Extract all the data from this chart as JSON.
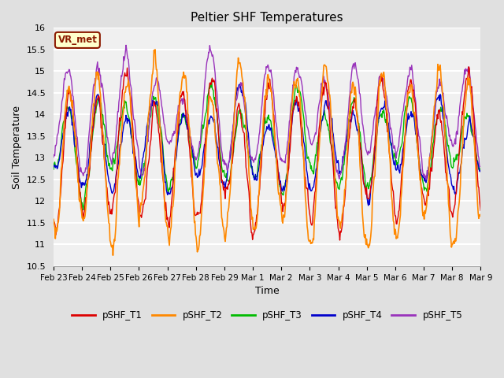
{
  "title": "Peltier SHF Temperatures",
  "xlabel": "Time",
  "ylabel": "Soil Temperature",
  "ylim": [
    10.5,
    16.0
  ],
  "yticks": [
    10.5,
    11.0,
    11.5,
    12.0,
    12.5,
    13.0,
    13.5,
    14.0,
    14.5,
    15.0,
    15.5,
    16.0
  ],
  "xtick_labels": [
    "Feb 23",
    "Feb 24",
    "Feb 25",
    "Feb 26",
    "Feb 27",
    "Feb 28",
    "Feb 29",
    "Mar 1",
    "Mar 2",
    "Mar 3",
    "Mar 4",
    "Mar 5",
    "Mar 6",
    "Mar 7",
    "Mar 8",
    "Mar 9"
  ],
  "fig_bg_color": "#e0e0e0",
  "plot_bg_color": "#f0f0f0",
  "grid_color": "#ffffff",
  "colors": {
    "T1": "#dd0000",
    "T2": "#ff8800",
    "T3": "#00bb00",
    "T4": "#0000cc",
    "T5": "#9933bb"
  },
  "legend_labels": [
    "pSHF_T1",
    "pSHF_T2",
    "pSHF_T3",
    "pSHF_T4",
    "pSHF_T5"
  ],
  "vr_met_box_color": "#ffffcc",
  "vr_met_border_color": "#8b1a00",
  "annotation_text": "VR_met"
}
